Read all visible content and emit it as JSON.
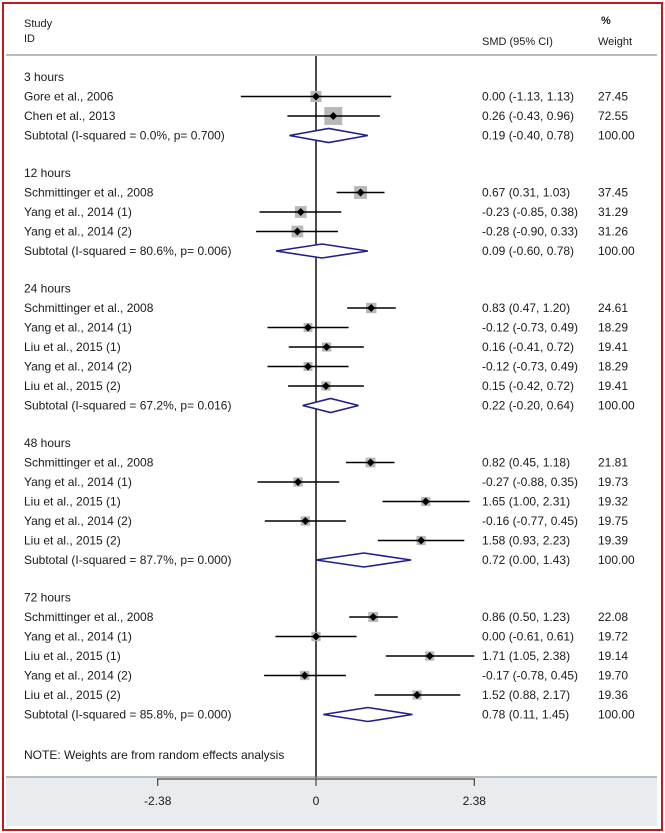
{
  "header": {
    "study_label": "Study",
    "id_label": "ID",
    "smd_label": "SMD (95% CI)",
    "pct_label": "%",
    "weight_label": "Weight"
  },
  "note": "NOTE: Weights are from random effects analysis",
  "colors": {
    "frame": "#c0181c",
    "diamond": "#1f1f8c",
    "axis_band": "#e8ecef",
    "weight_box": "#b8b8b8"
  },
  "chart_data": {
    "type": "forest",
    "x_axis": {
      "ticks": [
        -2.38,
        0,
        2.38
      ],
      "tick_labels": [
        "-2.38",
        "0",
        "2.38"
      ],
      "range": [
        -2.38,
        2.38
      ]
    },
    "groups": [
      {
        "label": "3 hours",
        "studies": [
          {
            "label": "Gore et al., 2006",
            "smd": 0.0,
            "lo": -1.13,
            "hi": 1.13,
            "ci_text": "0.00 (-1.13, 1.13)",
            "weight": "27.45"
          },
          {
            "label": "Chen et al., 2013",
            "smd": 0.26,
            "lo": -0.43,
            "hi": 0.96,
            "ci_text": "0.26 (-0.43, 0.96)",
            "weight": "72.55"
          }
        ],
        "subtotal": {
          "label": "Subtotal (I-squared = 0.0%, p= 0.700)",
          "smd": 0.19,
          "lo": -0.4,
          "hi": 0.78,
          "ci_text": "0.19 (-0.40, 0.78)",
          "weight": "100.00"
        }
      },
      {
        "label": "12 hours",
        "studies": [
          {
            "label": "Schmittinger et al., 2008",
            "smd": 0.67,
            "lo": 0.31,
            "hi": 1.03,
            "ci_text": "0.67 (0.31, 1.03)",
            "weight": "37.45"
          },
          {
            "label": "Yang et al., 2014 (1)",
            "smd": -0.23,
            "lo": -0.85,
            "hi": 0.38,
            "ci_text": "-0.23 (-0.85, 0.38)",
            "weight": "31.29"
          },
          {
            "label": "Yang et al., 2014 (2)",
            "smd": -0.28,
            "lo": -0.9,
            "hi": 0.33,
            "ci_text": "-0.28 (-0.90, 0.33)",
            "weight": "31.26"
          }
        ],
        "subtotal": {
          "label": "Subtotal (I-squared = 80.6%, p= 0.006)",
          "smd": 0.09,
          "lo": -0.6,
          "hi": 0.78,
          "ci_text": "0.09 (-0.60, 0.78)",
          "weight": "100.00"
        }
      },
      {
        "label": "24 hours",
        "studies": [
          {
            "label": "Schmittinger et al., 2008",
            "smd": 0.83,
            "lo": 0.47,
            "hi": 1.2,
            "ci_text": "0.83 (0.47, 1.20)",
            "weight": "24.61"
          },
          {
            "label": "Yang et al., 2014 (1)",
            "smd": -0.12,
            "lo": -0.73,
            "hi": 0.49,
            "ci_text": "-0.12 (-0.73, 0.49)",
            "weight": "18.29"
          },
          {
            "label": "Liu et al., 2015 (1)",
            "smd": 0.16,
            "lo": -0.41,
            "hi": 0.72,
            "ci_text": "0.16 (-0.41, 0.72)",
            "weight": "19.41"
          },
          {
            "label": "Yang et al., 2014 (2)",
            "smd": -0.12,
            "lo": -0.73,
            "hi": 0.49,
            "ci_text": "-0.12 (-0.73, 0.49)",
            "weight": "18.29"
          },
          {
            "label": "Liu et al., 2015 (2)",
            "smd": 0.15,
            "lo": -0.42,
            "hi": 0.72,
            "ci_text": "0.15 (-0.42, 0.72)",
            "weight": "19.41"
          }
        ],
        "subtotal": {
          "label": "Subtotal (I-squared = 67.2%, p= 0.016)",
          "smd": 0.22,
          "lo": -0.2,
          "hi": 0.64,
          "ci_text": "0.22 (-0.20, 0.64)",
          "weight": "100.00"
        }
      },
      {
        "label": "48 hours",
        "studies": [
          {
            "label": "Schmittinger et al., 2008",
            "smd": 0.82,
            "lo": 0.45,
            "hi": 1.18,
            "ci_text": "0.82 (0.45, 1.18)",
            "weight": "21.81"
          },
          {
            "label": "Yang et al., 2014 (1)",
            "smd": -0.27,
            "lo": -0.88,
            "hi": 0.35,
            "ci_text": "-0.27 (-0.88, 0.35)",
            "weight": "19.73"
          },
          {
            "label": "Liu et al., 2015 (1)",
            "smd": 1.65,
            "lo": 1.0,
            "hi": 2.31,
            "ci_text": "1.65 (1.00, 2.31)",
            "weight": "19.32"
          },
          {
            "label": "Yang et al., 2014 (2)",
            "smd": -0.16,
            "lo": -0.77,
            "hi": 0.45,
            "ci_text": "-0.16 (-0.77, 0.45)",
            "weight": "19.75"
          },
          {
            "label": "Liu et al., 2015 (2)",
            "smd": 1.58,
            "lo": 0.93,
            "hi": 2.23,
            "ci_text": "1.58 (0.93, 2.23)",
            "weight": "19.39"
          }
        ],
        "subtotal": {
          "label": "Subtotal (I-squared = 87.7%, p= 0.000)",
          "smd": 0.72,
          "lo": 0.0,
          "hi": 1.43,
          "ci_text": "0.72 (0.00, 1.43)",
          "weight": "100.00"
        }
      },
      {
        "label": "72 hours",
        "studies": [
          {
            "label": "Schmittinger et al., 2008",
            "smd": 0.86,
            "lo": 0.5,
            "hi": 1.23,
            "ci_text": "0.86 (0.50, 1.23)",
            "weight": "22.08"
          },
          {
            "label": "Yang et al., 2014 (1)",
            "smd": 0.0,
            "lo": -0.61,
            "hi": 0.61,
            "ci_text": "0.00 (-0.61, 0.61)",
            "weight": "19.72"
          },
          {
            "label": "Liu et al., 2015 (1)",
            "smd": 1.71,
            "lo": 1.05,
            "hi": 2.38,
            "ci_text": "1.71 (1.05, 2.38)",
            "weight": "19.14"
          },
          {
            "label": "Yang et al., 2014 (2)",
            "smd": -0.17,
            "lo": -0.78,
            "hi": 0.45,
            "ci_text": "-0.17 (-0.78, 0.45)",
            "weight": "19.70"
          },
          {
            "label": "Liu et al., 2015 (2)",
            "smd": 1.52,
            "lo": 0.88,
            "hi": 2.17,
            "ci_text": "1.52 (0.88, 2.17)",
            "weight": "19.36"
          }
        ],
        "subtotal": {
          "label": "Subtotal (I-squared = 85.8%, p= 0.000)",
          "smd": 0.78,
          "lo": 0.11,
          "hi": 1.45,
          "ci_text": "0.78 (0.11, 1.45)",
          "weight": "100.00"
        }
      }
    ]
  }
}
